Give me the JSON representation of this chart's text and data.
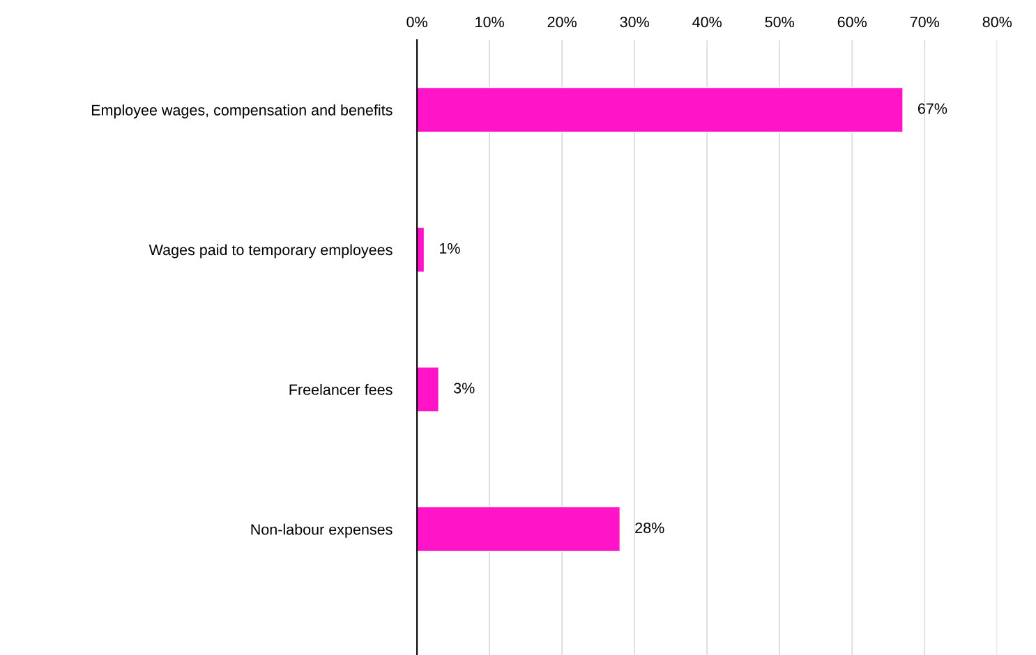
{
  "chart_data": {
    "type": "bar",
    "orientation": "horizontal",
    "categories": [
      "Employee wages, compensation and benefits",
      "Wages paid to temporary employees",
      "Freelancer fees",
      "Non-labour expenses"
    ],
    "values": [
      67,
      1,
      3,
      28
    ],
    "value_labels": [
      "67%",
      "1%",
      "3%",
      "28%"
    ],
    "color": "#ff14c8",
    "xlim": [
      0,
      80
    ],
    "xticks": [
      {
        "value": 0,
        "label": "0%"
      },
      {
        "value": 10,
        "label": "10%"
      },
      {
        "value": 20,
        "label": "20%"
      },
      {
        "value": 30,
        "label": "30%"
      },
      {
        "value": 40,
        "label": "40%"
      },
      {
        "value": 50,
        "label": "50%"
      },
      {
        "value": 60,
        "label": "60%"
      },
      {
        "value": 70,
        "label": "70%"
      },
      {
        "value": 80,
        "label": "80%"
      }
    ],
    "grid": "x",
    "legend": false
  }
}
